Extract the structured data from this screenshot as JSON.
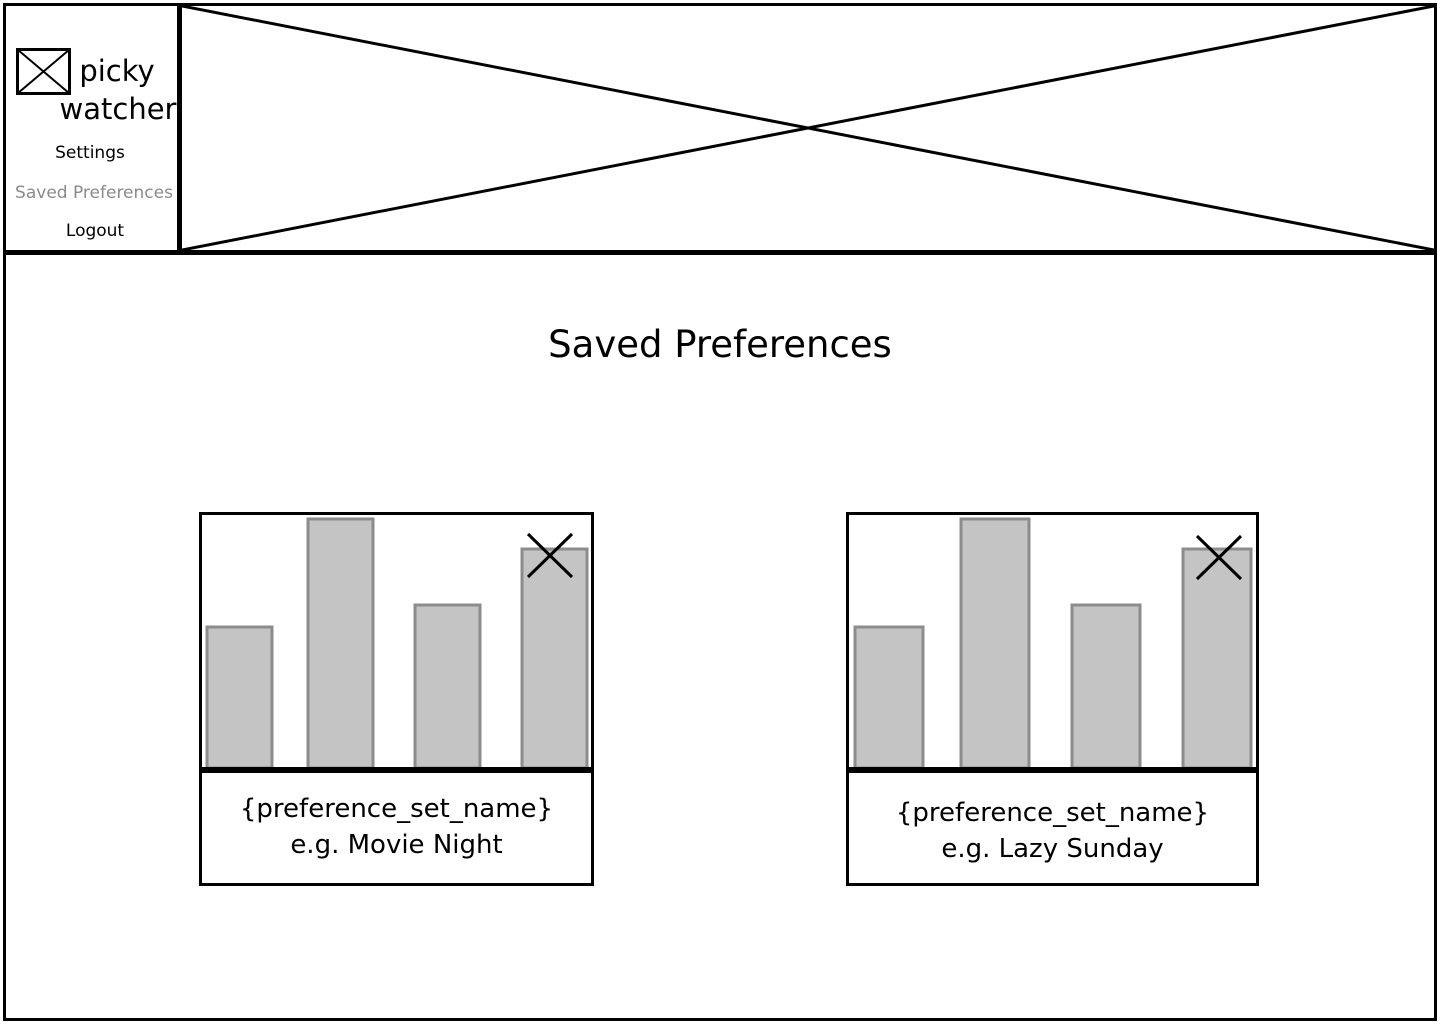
{
  "app": {
    "name_line1": "picky",
    "name_line2": "watcher",
    "logo_icon": "image-placeholder-icon"
  },
  "nav": {
    "items": [
      {
        "label": "Settings",
        "active": false
      },
      {
        "label": "Saved Preferences",
        "active": true
      },
      {
        "label": "Logout",
        "active": false
      }
    ]
  },
  "banner": {
    "icon": "image-placeholder-icon"
  },
  "page": {
    "title": "Saved Preferences"
  },
  "preference_sets": [
    {
      "name_line1": "{preference_set_name}",
      "name_line2": "e.g. Movie Night",
      "thumbnail_icon": "bar-chart-icon",
      "remove_icon": "close-icon"
    },
    {
      "name_line1": "{preference_set_name}",
      "name_line2": "e.g. Lazy Sunday",
      "thumbnail_icon": "bar-chart-icon",
      "remove_icon": "close-icon"
    }
  ],
  "colors": {
    "bar_fill": "#c4c4c4",
    "bar_stroke": "#8c8c8c",
    "active_nav": "#8a8a8a"
  }
}
